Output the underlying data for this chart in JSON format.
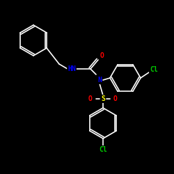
{
  "background": "#000000",
  "bond_color": "#ffffff",
  "atom_colors": {
    "N": "#0000ff",
    "O": "#ff0000",
    "Cl": "#00cc00",
    "S": "#ffff00",
    "H": "#ffffff",
    "C": "#ffffff"
  },
  "font_size_atom": 7,
  "fig_width": 2.5,
  "fig_height": 2.5,
  "dpi": 100
}
